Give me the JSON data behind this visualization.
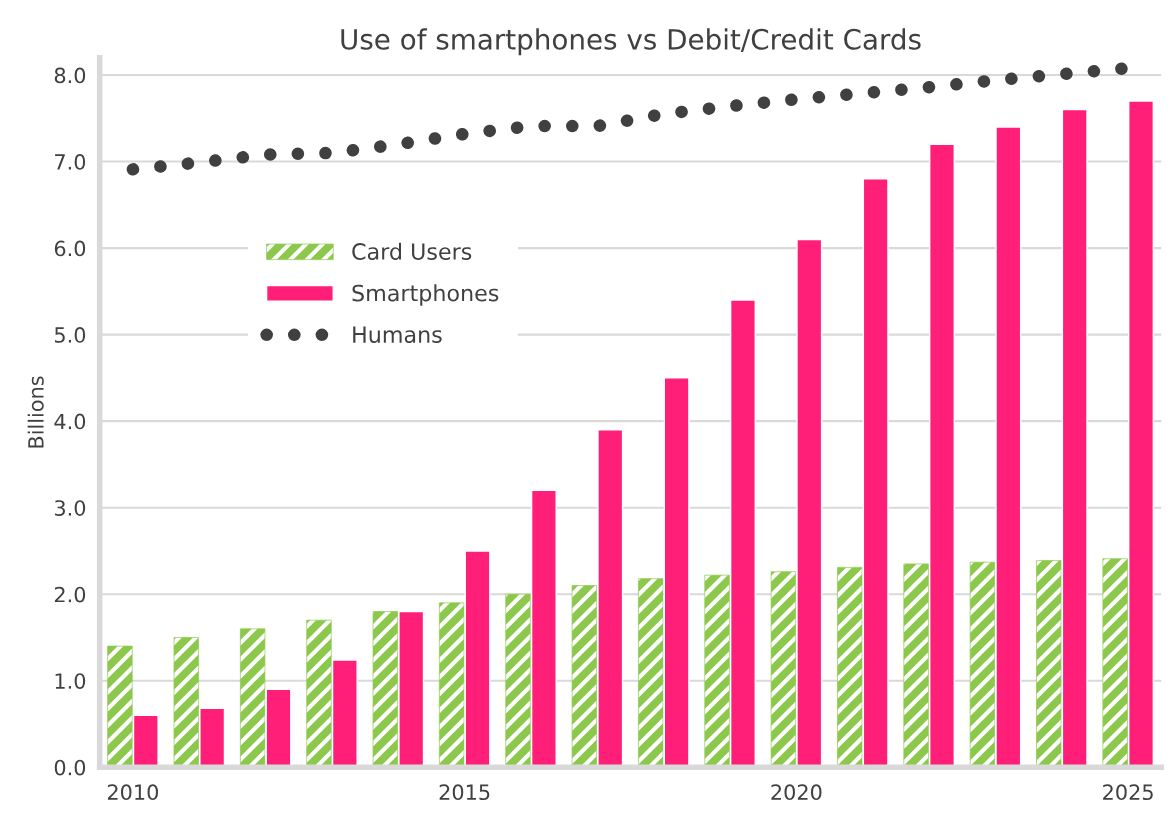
{
  "chart_data": {
    "type": "bar",
    "title": "Use of smartphones vs Debit/Credit Cards",
    "ylabel": "Billions",
    "categories": [
      "2010",
      null,
      null,
      null,
      null,
      "2015",
      null,
      null,
      null,
      null,
      "2020",
      null,
      null,
      null,
      null,
      "2025"
    ],
    "series": [
      {
        "name": "Card Users",
        "color": "#8cc84b",
        "values": [
          1.4,
          1.5,
          1.6,
          1.7,
          1.8,
          1.9,
          2.0,
          2.1,
          2.18,
          2.22,
          2.26,
          2.31,
          2.35,
          2.37,
          2.39,
          2.41
        ]
      },
      {
        "name": "Smartphones",
        "color": "#ff1f78",
        "values": [
          0.6,
          0.68,
          0.9,
          1.24,
          1.8,
          2.5,
          3.2,
          3.9,
          4.5,
          5.4,
          6.1,
          6.8,
          7.2,
          7.4,
          7.6,
          7.7
        ]
      },
      {
        "name": "Humans",
        "type": "line",
        "color": "#404040",
        "line_style": "dotted",
        "values": [
          6.91,
          6.99,
          7.08,
          7.1,
          7.2,
          7.32,
          7.41,
          7.41,
          7.55,
          7.64,
          7.72,
          7.79,
          7.86,
          7.94,
          8.01,
          8.08
        ]
      }
    ],
    "ylim": [
      0,
      8.2
    ],
    "yticks": [
      {
        "value": 0,
        "label": "0.0"
      },
      {
        "value": 1,
        "label": "1.0"
      },
      {
        "value": 2,
        "label": "2.0"
      },
      {
        "value": 3,
        "label": "3.0"
      },
      {
        "value": 4,
        "label": "4.0"
      },
      {
        "value": 5,
        "label": "5.0"
      },
      {
        "value": 6,
        "label": "6.0"
      },
      {
        "value": 7,
        "label": "7.0"
      },
      {
        "value": 8,
        "label": "8.0"
      }
    ],
    "grid": "y",
    "legend": "top left"
  }
}
